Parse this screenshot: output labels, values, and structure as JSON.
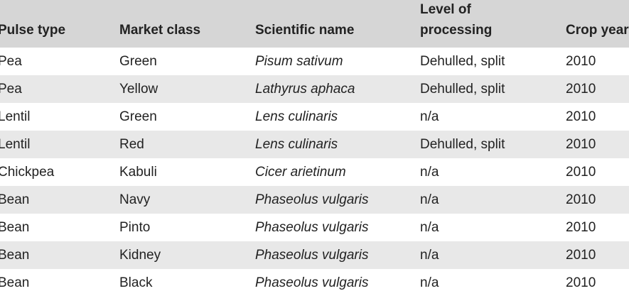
{
  "columns": [
    "Pulse type",
    "Market class",
    "Scientific name",
    "Level of processing",
    "Crop year"
  ],
  "header": {
    "col1": "Pulse type",
    "col2": "Market class",
    "col3": "Scientific name",
    "col4_line1": "Level of",
    "col4_line2": "processing",
    "col5": "Crop year"
  },
  "rows": [
    {
      "pulse_type": "Pea",
      "market_class": "Green",
      "scientific_name": "Pisum sativum",
      "processing": "Dehulled, split",
      "crop_year": "2010"
    },
    {
      "pulse_type": "Pea",
      "market_class": "Yellow",
      "scientific_name": "Lathyrus aphaca",
      "processing": "Dehulled, split",
      "crop_year": "2010"
    },
    {
      "pulse_type": "Lentil",
      "market_class": "Green",
      "scientific_name": "Lens culinaris",
      "processing": "n/a",
      "crop_year": "2010"
    },
    {
      "pulse_type": "Lentil",
      "market_class": "Red",
      "scientific_name": "Lens culinaris",
      "processing": "Dehulled, split",
      "crop_year": "2010"
    },
    {
      "pulse_type": "Chickpea",
      "market_class": "Kabuli",
      "scientific_name": "Cicer arietinum",
      "processing": "n/a",
      "crop_year": "2010"
    },
    {
      "pulse_type": "Bean",
      "market_class": "Navy",
      "scientific_name": "Phaseolus vulgaris",
      "processing": "n/a",
      "crop_year": "2010"
    },
    {
      "pulse_type": "Bean",
      "market_class": "Pinto",
      "scientific_name": "Phaseolus vulgaris",
      "processing": "n/a",
      "crop_year": "2010"
    },
    {
      "pulse_type": "Bean",
      "market_class": "Kidney",
      "scientific_name": "Phaseolus vulgaris",
      "processing": "n/a",
      "crop_year": "2010"
    },
    {
      "pulse_type": "Bean",
      "market_class": "Black",
      "scientific_name": "Phaseolus vulgaris",
      "processing": "n/a",
      "crop_year": "2010"
    }
  ],
  "colors": {
    "header_bg": "#d6d6d6",
    "stripe_bg": "#e8e8e8",
    "text": "#222222"
  }
}
